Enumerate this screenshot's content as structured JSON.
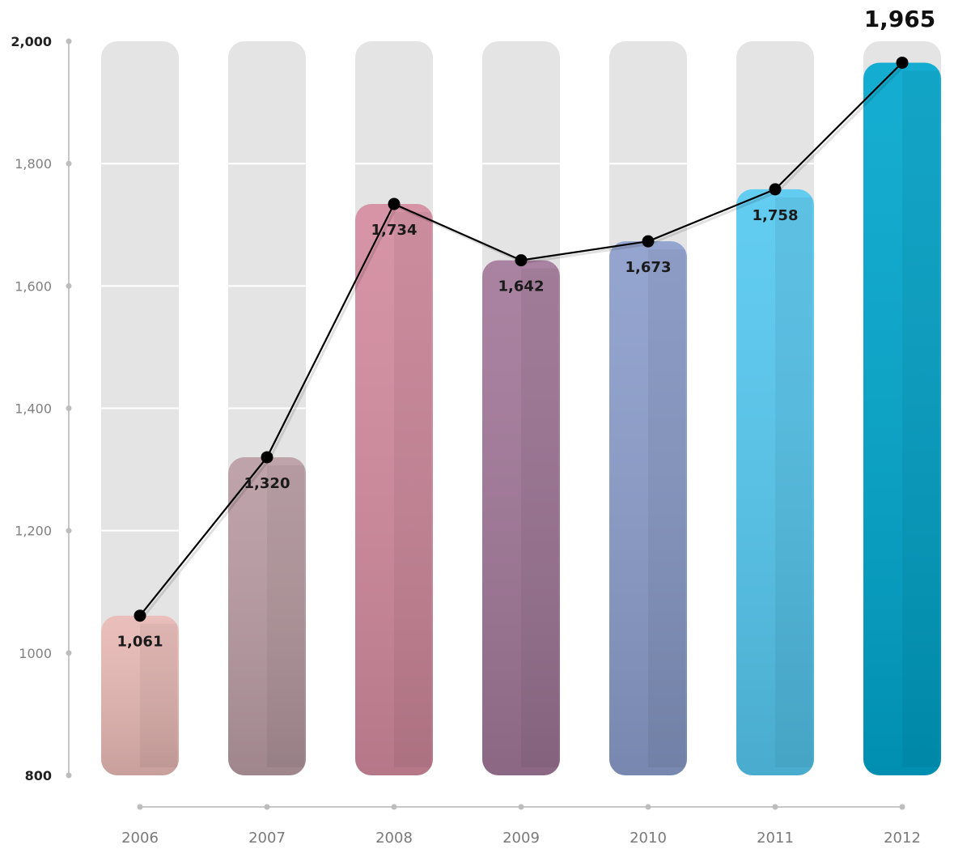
{
  "chart_data": {
    "type": "bar",
    "categories": [
      "2006",
      "2007",
      "2008",
      "2009",
      "2010",
      "2011",
      "2012"
    ],
    "values": [
      1061,
      1320,
      1734,
      1642,
      1673,
      1758,
      1965
    ],
    "line_overlay": true,
    "value_labels": [
      "1,061",
      "1,320",
      "1,734",
      "1,642",
      "1,673",
      "1,758",
      "1,965"
    ],
    "ylim": [
      800,
      2000
    ],
    "yticks": [
      800,
      1000,
      1200,
      1400,
      1600,
      1800,
      2000
    ],
    "ytick_labels": [
      "800",
      "1000",
      "1,200",
      "1,400",
      "1,600",
      "1,800",
      "2,000"
    ],
    "grid": true,
    "title": "",
    "xlabel": "",
    "ylabel": "",
    "colors": {
      "bars": [
        "#e8b9b5",
        "#b99ca3",
        "#d38b9f",
        "#a27899",
        "#8b9dcb",
        "#55c8f0",
        "#00a6cd"
      ],
      "track": "#e4e4e4",
      "line": "#000000",
      "axis": "#c8c8c8"
    }
  }
}
